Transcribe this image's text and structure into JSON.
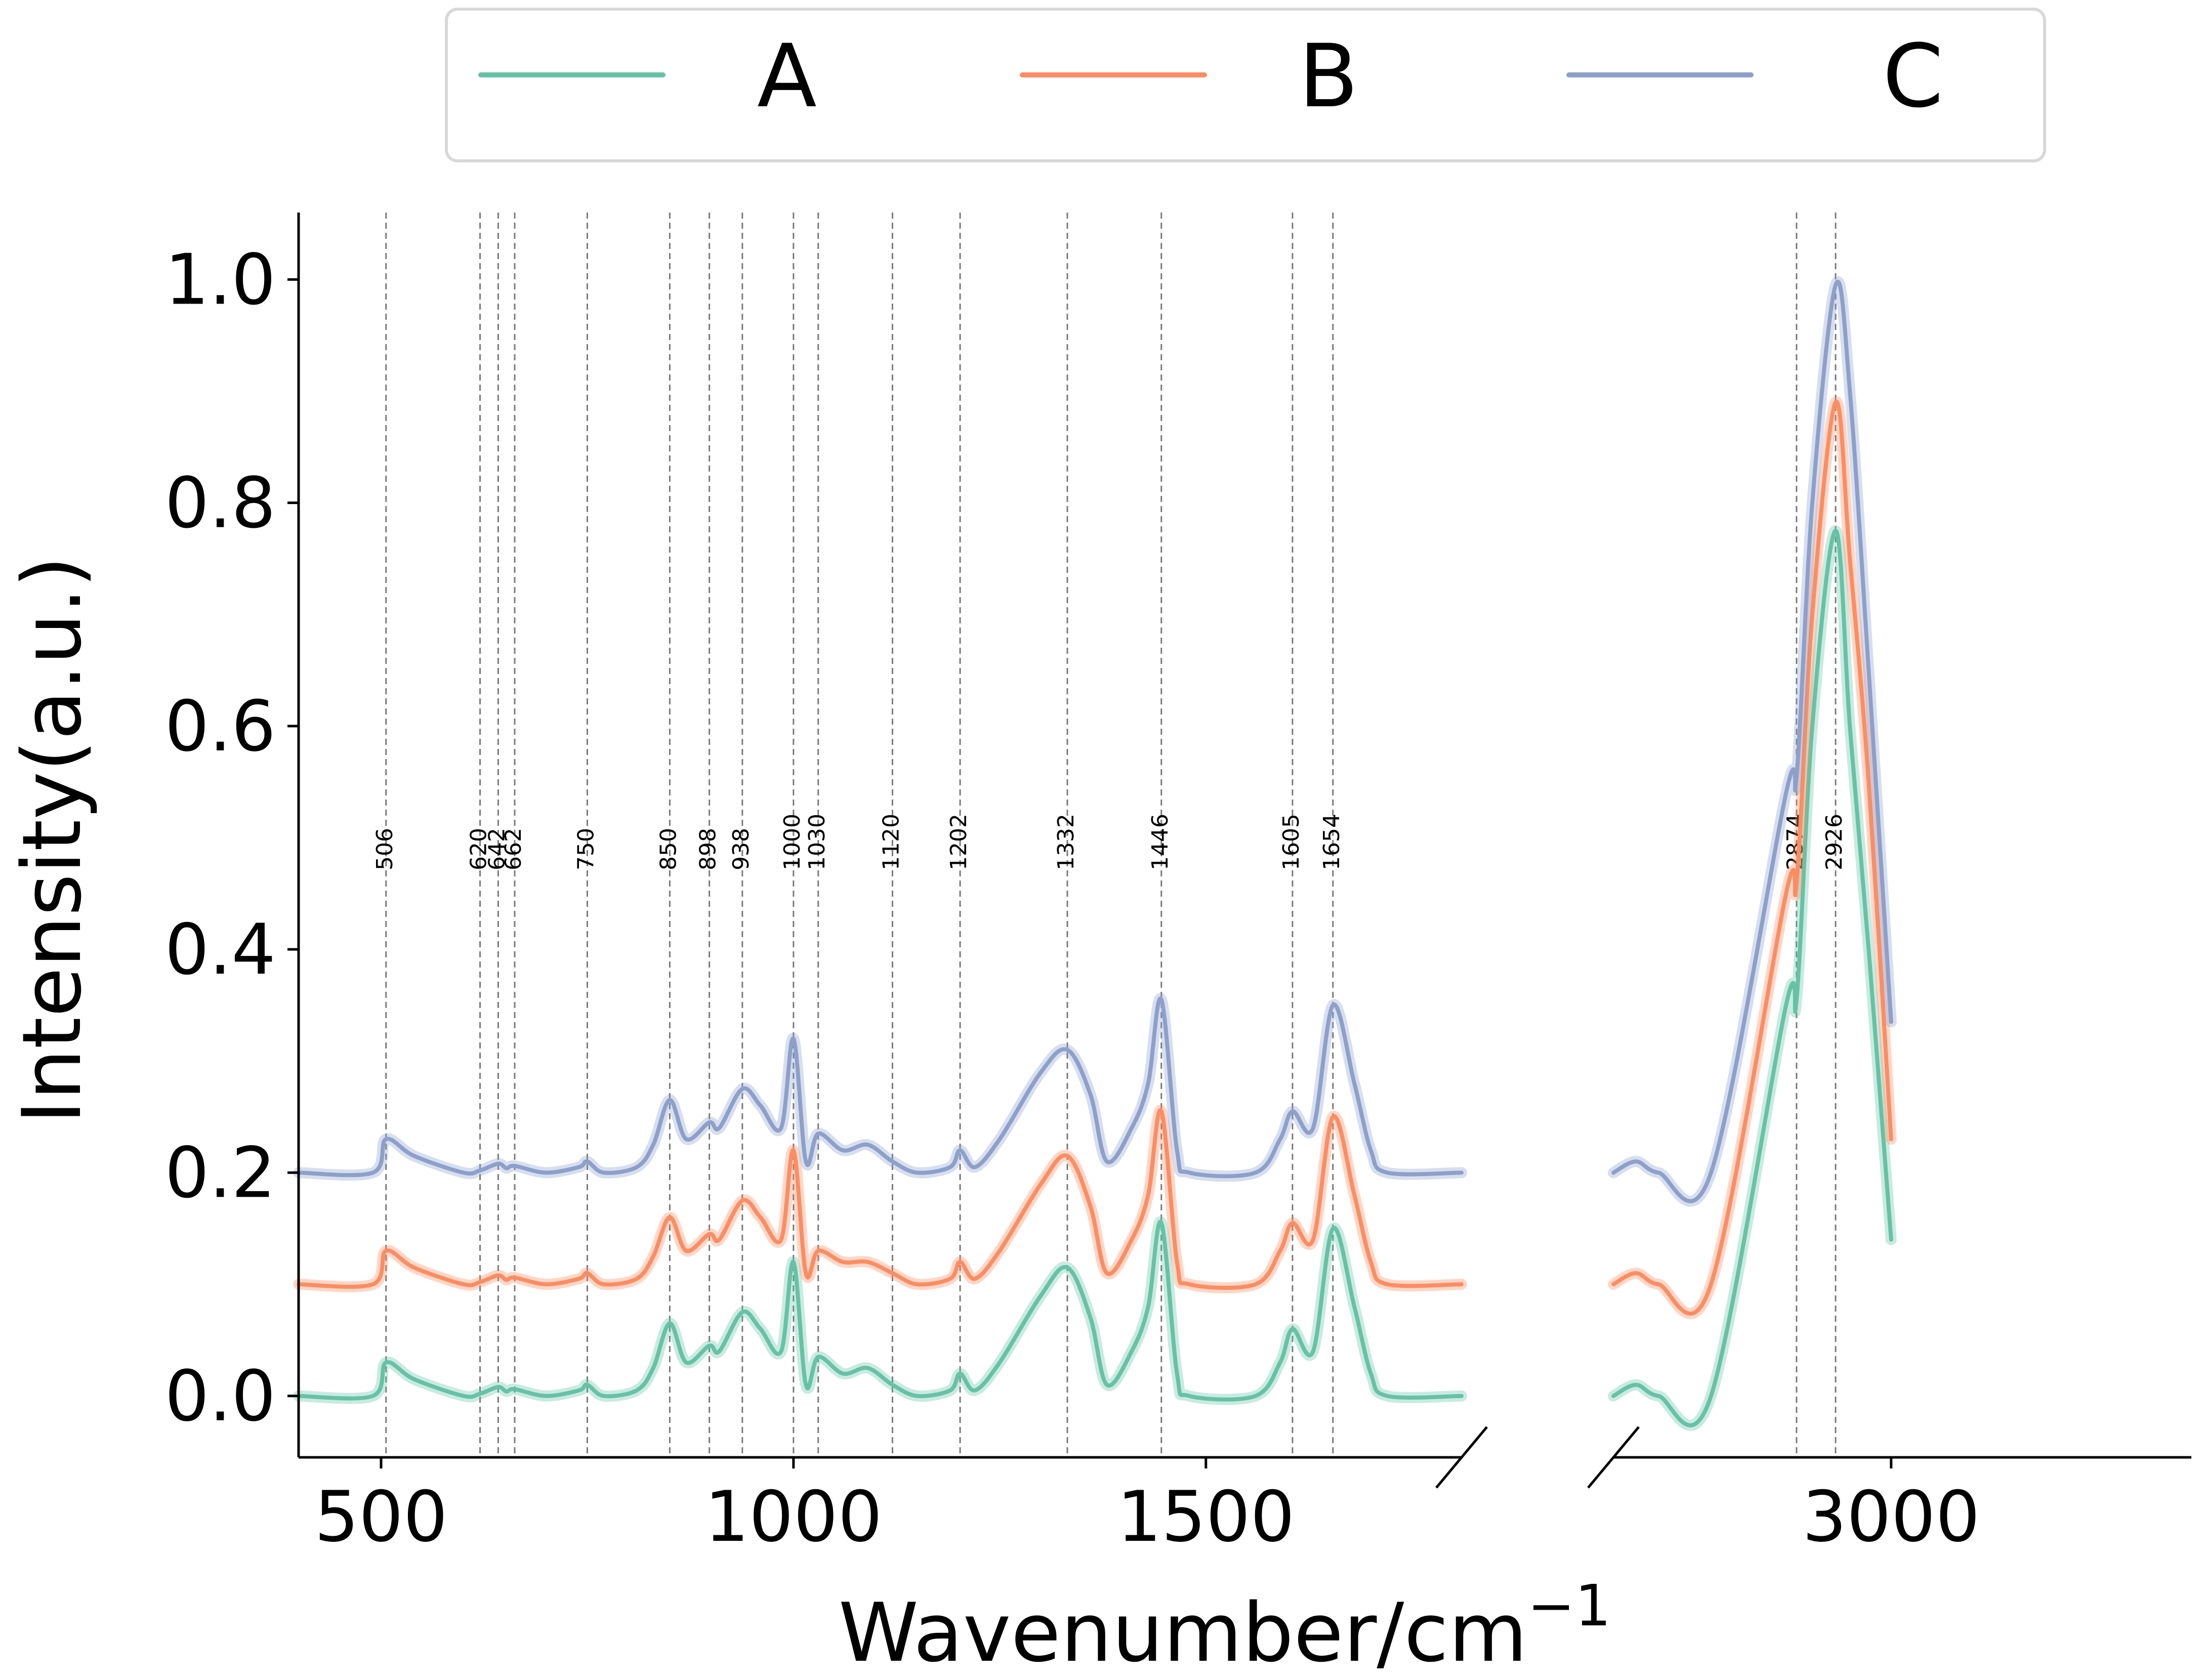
{
  "chart_data": {
    "type": "line",
    "xlabel": "Wavenumber/cm",
    "xlabel_sup": "−1",
    "ylabel": "Intensity(a.u.)",
    "ylim": [
      -0.055,
      1.06
    ],
    "yticks": [
      "0.0",
      "0.2",
      "0.4",
      "0.6",
      "0.8",
      "1.0"
    ],
    "broken_x_axis": true,
    "x_segments": [
      {
        "range": [
          400,
          1810
        ],
        "ticks": [
          500,
          1000,
          1500
        ]
      },
      {
        "range": [
          2630,
          3400
        ],
        "ticks": [
          3000
        ]
      }
    ],
    "legend": {
      "placement": "top-center",
      "frame": true
    },
    "peak_lines": [
      "506",
      "620",
      "642",
      "662",
      "750",
      "850",
      "898",
      "938",
      "1000",
      "1030",
      "1120",
      "1202",
      "1332",
      "1446",
      "1605",
      "1654",
      "2874",
      "2926"
    ],
    "series": [
      {
        "name": "A",
        "color": "#66c2a5",
        "offset": 0.0,
        "low": [
          [
            400,
            0
          ],
          [
            490,
            0
          ],
          [
            506,
            0.03
          ],
          [
            540,
            0.015
          ],
          [
            600,
            0
          ],
          [
            620,
            0.002
          ],
          [
            642,
            0.008
          ],
          [
            652,
            0.004
          ],
          [
            662,
            0.006
          ],
          [
            700,
            0
          ],
          [
            740,
            0.005
          ],
          [
            750,
            0.01
          ],
          [
            770,
            0
          ],
          [
            810,
            0.005
          ],
          [
            830,
            0.025
          ],
          [
            850,
            0.065
          ],
          [
            870,
            0.03
          ],
          [
            898,
            0.045
          ],
          [
            910,
            0.04
          ],
          [
            938,
            0.075
          ],
          [
            960,
            0.06
          ],
          [
            985,
            0.04
          ],
          [
            1000,
            0.12
          ],
          [
            1015,
            0.01
          ],
          [
            1030,
            0.035
          ],
          [
            1060,
            0.02
          ],
          [
            1090,
            0.025
          ],
          [
            1120,
            0.01
          ],
          [
            1150,
            0
          ],
          [
            1190,
            0.005
          ],
          [
            1202,
            0.02
          ],
          [
            1220,
            0.005
          ],
          [
            1250,
            0.03
          ],
          [
            1300,
            0.09
          ],
          [
            1332,
            0.115
          ],
          [
            1360,
            0.07
          ],
          [
            1380,
            0.01
          ],
          [
            1410,
            0.04
          ],
          [
            1430,
            0.08
          ],
          [
            1446,
            0.155
          ],
          [
            1465,
            0.02
          ],
          [
            1480,
            0
          ],
          [
            1560,
            0
          ],
          [
            1590,
            0.03
          ],
          [
            1605,
            0.06
          ],
          [
            1630,
            0.04
          ],
          [
            1654,
            0.15
          ],
          [
            1680,
            0.08
          ],
          [
            1700,
            0.02
          ],
          [
            1720,
            0
          ],
          [
            1810,
            0
          ]
        ],
        "high": [
          [
            2630,
            0
          ],
          [
            2660,
            0.01
          ],
          [
            2690,
            0
          ],
          [
            2760,
            0
          ],
          [
            2860,
            0.35
          ],
          [
            2874,
            0.355
          ],
          [
            2895,
            0.6
          ],
          [
            2926,
            0.775
          ],
          [
            2945,
            0.6
          ],
          [
            2970,
            0.4
          ],
          [
            3000,
            0.14
          ]
        ]
      },
      {
        "name": "B",
        "color": "#fc8d62",
        "offset": 0.1,
        "low": [
          [
            400,
            0
          ],
          [
            490,
            0
          ],
          [
            506,
            0.03
          ],
          [
            540,
            0.015
          ],
          [
            600,
            0
          ],
          [
            620,
            0.002
          ],
          [
            642,
            0.008
          ],
          [
            652,
            0.004
          ],
          [
            662,
            0.006
          ],
          [
            700,
            0
          ],
          [
            740,
            0.005
          ],
          [
            750,
            0.01
          ],
          [
            770,
            0
          ],
          [
            810,
            0.005
          ],
          [
            830,
            0.025
          ],
          [
            850,
            0.06
          ],
          [
            870,
            0.03
          ],
          [
            898,
            0.045
          ],
          [
            910,
            0.04
          ],
          [
            938,
            0.075
          ],
          [
            960,
            0.06
          ],
          [
            985,
            0.04
          ],
          [
            1000,
            0.12
          ],
          [
            1015,
            0.01
          ],
          [
            1030,
            0.03
          ],
          [
            1060,
            0.02
          ],
          [
            1090,
            0.02
          ],
          [
            1120,
            0.01
          ],
          [
            1150,
            0
          ],
          [
            1190,
            0.005
          ],
          [
            1202,
            0.02
          ],
          [
            1220,
            0.005
          ],
          [
            1250,
            0.03
          ],
          [
            1300,
            0.09
          ],
          [
            1332,
            0.115
          ],
          [
            1360,
            0.07
          ],
          [
            1380,
            0.01
          ],
          [
            1410,
            0.04
          ],
          [
            1430,
            0.08
          ],
          [
            1446,
            0.155
          ],
          [
            1465,
            0.02
          ],
          [
            1480,
            0
          ],
          [
            1560,
            0
          ],
          [
            1590,
            0.03
          ],
          [
            1605,
            0.055
          ],
          [
            1630,
            0.04
          ],
          [
            1654,
            0.15
          ],
          [
            1680,
            0.08
          ],
          [
            1700,
            0.02
          ],
          [
            1720,
            0
          ],
          [
            1810,
            0
          ]
        ],
        "high": [
          [
            2630,
            0
          ],
          [
            2660,
            0.01
          ],
          [
            2690,
            0
          ],
          [
            2760,
            0
          ],
          [
            2860,
            0.35
          ],
          [
            2874,
            0.36
          ],
          [
            2895,
            0.6
          ],
          [
            2926,
            0.79
          ],
          [
            2945,
            0.65
          ],
          [
            2970,
            0.45
          ],
          [
            3000,
            0.13
          ]
        ]
      },
      {
        "name": "C",
        "color": "#8da0cb",
        "offset": 0.2,
        "low": [
          [
            400,
            0
          ],
          [
            490,
            0
          ],
          [
            506,
            0.03
          ],
          [
            540,
            0.015
          ],
          [
            600,
            0
          ],
          [
            620,
            0.002
          ],
          [
            642,
            0.008
          ],
          [
            652,
            0.004
          ],
          [
            662,
            0.006
          ],
          [
            700,
            0
          ],
          [
            740,
            0.005
          ],
          [
            750,
            0.01
          ],
          [
            770,
            0
          ],
          [
            810,
            0.005
          ],
          [
            830,
            0.025
          ],
          [
            850,
            0.065
          ],
          [
            870,
            0.03
          ],
          [
            898,
            0.045
          ],
          [
            910,
            0.04
          ],
          [
            938,
            0.075
          ],
          [
            960,
            0.06
          ],
          [
            985,
            0.04
          ],
          [
            1000,
            0.12
          ],
          [
            1015,
            0.01
          ],
          [
            1030,
            0.035
          ],
          [
            1060,
            0.02
          ],
          [
            1090,
            0.025
          ],
          [
            1120,
            0.01
          ],
          [
            1150,
            0
          ],
          [
            1190,
            0.005
          ],
          [
            1202,
            0.02
          ],
          [
            1220,
            0.005
          ],
          [
            1250,
            0.03
          ],
          [
            1300,
            0.09
          ],
          [
            1332,
            0.11
          ],
          [
            1360,
            0.07
          ],
          [
            1380,
            0.01
          ],
          [
            1410,
            0.04
          ],
          [
            1430,
            0.08
          ],
          [
            1446,
            0.155
          ],
          [
            1465,
            0.02
          ],
          [
            1480,
            0
          ],
          [
            1560,
            0
          ],
          [
            1590,
            0.03
          ],
          [
            1605,
            0.055
          ],
          [
            1630,
            0.04
          ],
          [
            1654,
            0.15
          ],
          [
            1680,
            0.08
          ],
          [
            1700,
            0.02
          ],
          [
            1720,
            0
          ],
          [
            1810,
            0
          ]
        ],
        "high": [
          [
            2630,
            0
          ],
          [
            2660,
            0.01
          ],
          [
            2690,
            0
          ],
          [
            2760,
            0
          ],
          [
            2860,
            0.34
          ],
          [
            2874,
            0.355
          ],
          [
            2895,
            0.6
          ],
          [
            2926,
            0.795
          ],
          [
            2945,
            0.7
          ],
          [
            2970,
            0.45
          ],
          [
            3000,
            0.135
          ]
        ]
      }
    ]
  }
}
